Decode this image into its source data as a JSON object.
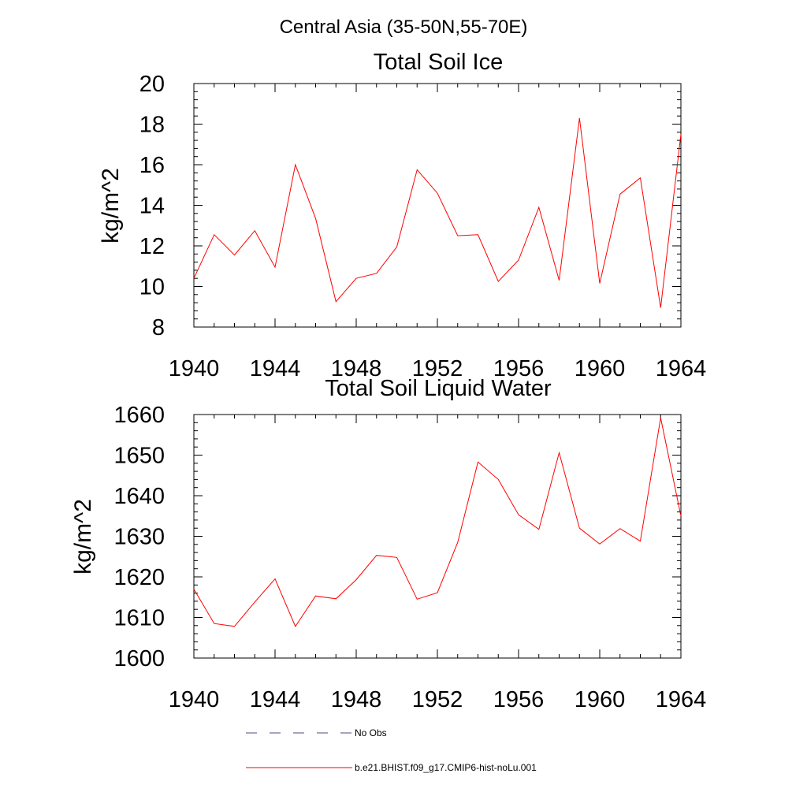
{
  "figure_title": "Central Asia (35-50N,55-70E)",
  "chart_data": [
    {
      "type": "line",
      "title": "Total Soil Ice",
      "xlabel": "",
      "ylabel": "kg/m^2",
      "xlim": [
        1940,
        1964
      ],
      "ylim": [
        8,
        20
      ],
      "xticks": [
        1940,
        1944,
        1948,
        1952,
        1956,
        1960,
        1964
      ],
      "yticks": [
        8,
        10,
        12,
        14,
        16,
        18,
        20
      ],
      "grid": false,
      "x": [
        1940,
        1941,
        1942,
        1943,
        1944,
        1945,
        1946,
        1947,
        1948,
        1949,
        1950,
        1951,
        1952,
        1953,
        1954,
        1955,
        1956,
        1957,
        1958,
        1959,
        1960,
        1961,
        1962,
        1963,
        1964
      ],
      "series": [
        {
          "name": "b.e21.BHIST.f09_g17.CMIP6-hist-noLu.001",
          "color": "#ff0000",
          "values": [
            10.4,
            12.55,
            11.55,
            12.75,
            10.95,
            16.0,
            13.35,
            9.25,
            10.4,
            10.65,
            11.95,
            15.75,
            14.6,
            12.5,
            12.55,
            10.25,
            11.3,
            13.9,
            10.3,
            18.3,
            10.15,
            14.55,
            15.35,
            8.95,
            17.5
          ]
        }
      ]
    },
    {
      "type": "line",
      "title": "Total Soil Liquid Water",
      "xlabel": "",
      "ylabel": "kg/m^2",
      "xlim": [
        1940,
        1964
      ],
      "ylim": [
        1600,
        1660
      ],
      "xticks": [
        1940,
        1944,
        1948,
        1952,
        1956,
        1960,
        1964
      ],
      "yticks": [
        1600,
        1610,
        1620,
        1630,
        1640,
        1650,
        1660
      ],
      "grid": false,
      "x": [
        1940,
        1941,
        1942,
        1943,
        1944,
        1945,
        1946,
        1947,
        1948,
        1949,
        1950,
        1951,
        1952,
        1953,
        1954,
        1955,
        1956,
        1957,
        1958,
        1959,
        1960,
        1961,
        1962,
        1963,
        1964
      ],
      "series": [
        {
          "name": "b.e21.BHIST.f09_g17.CMIP6-hist-noLu.001",
          "color": "#ff0000",
          "values": [
            1617,
            1608.5,
            1607.8,
            1613.8,
            1619.5,
            1607.8,
            1615.3,
            1614.6,
            1619.3,
            1625.3,
            1624.8,
            1614.5,
            1616.1,
            1628.5,
            1648.3,
            1644.0,
            1635.3,
            1631.7,
            1650.6,
            1632.0,
            1628.1,
            1631.9,
            1628.8,
            1659.2,
            1635.0
          ]
        }
      ]
    }
  ],
  "legend": {
    "placement": "bottom",
    "items": [
      {
        "label": "No Obs",
        "style": "dashed",
        "color": "#4a4a8a"
      },
      {
        "label": "b.e21.BHIST.f09_g17.CMIP6-hist-noLu.001",
        "style": "solid",
        "color": "#ff0000"
      }
    ]
  }
}
